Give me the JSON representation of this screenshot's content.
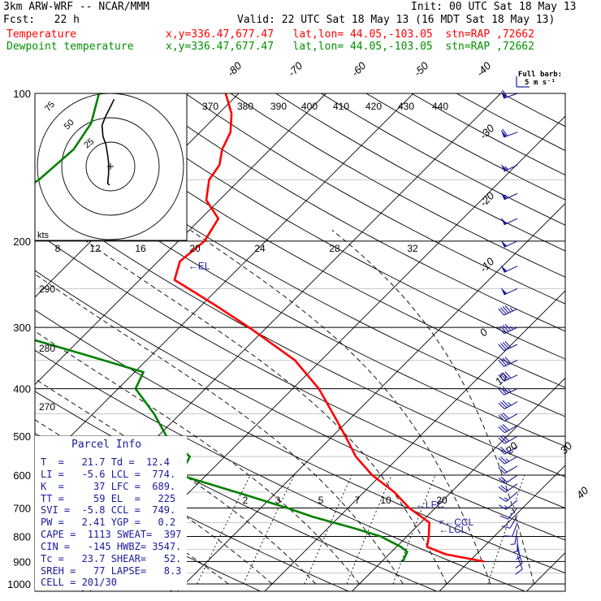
{
  "header": {
    "model": "3km ARW-WRF -- NCAR/MMM",
    "init": "Init: 00 UTC Sat 18 May 13",
    "fcst": "Fcst:   22 h",
    "valid": "Valid: 22 UTC Sat 18 May 13 (16 MDT Sat 18 May 13)",
    "temp_label": "Temperature",
    "temp_loc": "x,y=336.47,677.47   lat,lon= 44.05,-103.05  stn=RAP ,72662",
    "dew_label": "Dewpoint temperature",
    "dew_loc": "x,y=336.47,677.47   lat,lon= 44.05,-103.05  stn=RAP ,72662"
  },
  "colors": {
    "temperature": "#ff0000",
    "dewpoint": "#008000",
    "annotation": "#1a1a9e",
    "grid": "#000000",
    "faint_grid": "#c8c8c8"
  },
  "chart_data": {
    "type": "skew-t",
    "pressure_levels": [
      100,
      200,
      300,
      400,
      500,
      600,
      700,
      800,
      900,
      1000
    ],
    "isotherm_labels": [
      "-80",
      "-70",
      "-60",
      "-50",
      "-40",
      "-30",
      "-20",
      "-10",
      "0",
      "10",
      "20",
      "30",
      "40"
    ],
    "theta_labels": [
      "370",
      "380",
      "390",
      "400",
      "410",
      "420",
      "430",
      "440",
      "290",
      "280",
      "270"
    ],
    "mixing_ratio_labels": [
      "2",
      "3",
      "5",
      "7",
      "10",
      "20"
    ],
    "hodograph": {
      "units_label": "kts",
      "ring_labels": [
        "25",
        "50",
        "75"
      ],
      "speed_axis_labels": [
        "8",
        "12",
        "16",
        "20",
        "24",
        "28",
        "32"
      ],
      "trace": [
        [
          4,
          36
        ],
        [
          -2,
          30
        ],
        [
          -6,
          26
        ],
        [
          -9,
          22
        ],
        [
          -8,
          16
        ],
        [
          -5,
          12
        ],
        [
          -3,
          6
        ],
        [
          -2,
          2
        ],
        [
          -2,
          -4
        ],
        [
          -3,
          -9
        ],
        [
          -1,
          -10
        ]
      ]
    },
    "temperature": [
      {
        "p": 900,
        "t": 21.7
      },
      {
        "p": 870,
        "t": 16.5
      },
      {
        "p": 840,
        "t": 13.5
      },
      {
        "p": 800,
        "t": 12.5
      },
      {
        "p": 750,
        "t": 11.0
      },
      {
        "p": 700,
        "t": 7.0
      },
      {
        "p": 650,
        "t": 3.5
      },
      {
        "p": 600,
        "t": -1.0
      },
      {
        "p": 550,
        "t": -5.0
      },
      {
        "p": 500,
        "t": -8.5
      },
      {
        "p": 450,
        "t": -12.5
      },
      {
        "p": 400,
        "t": -17.0
      },
      {
        "p": 350,
        "t": -23.0
      },
      {
        "p": 300,
        "t": -32.0
      },
      {
        "p": 270,
        "t": -38.5
      },
      {
        "p": 240,
        "t": -46.0
      },
      {
        "p": 220,
        "t": -47.5
      },
      {
        "p": 200,
        "t": -47.0
      },
      {
        "p": 180,
        "t": -48.0
      },
      {
        "p": 165,
        "t": -51.5
      },
      {
        "p": 150,
        "t": -53.5
      },
      {
        "p": 140,
        "t": -54.0
      },
      {
        "p": 130,
        "t": -55.5
      },
      {
        "p": 120,
        "t": -56.5
      },
      {
        "p": 110,
        "t": -58.5
      },
      {
        "p": 100,
        "t": -61.5
      }
    ],
    "dewpoint": [
      {
        "p": 900,
        "t": 12.4
      },
      {
        "p": 860,
        "t": 11.8
      },
      {
        "p": 840,
        "t": 10.5
      },
      {
        "p": 800,
        "t": 7.0
      },
      {
        "p": 770,
        "t": 3.0
      },
      {
        "p": 730,
        "t": -3.0
      },
      {
        "p": 700,
        "t": -7.0
      },
      {
        "p": 660,
        "t": -13.0
      },
      {
        "p": 600,
        "t": -23.0
      },
      {
        "p": 550,
        "t": -24.0
      },
      {
        "p": 500,
        "t": -29.0
      },
      {
        "p": 450,
        "t": -33.0
      },
      {
        "p": 400,
        "t": -38.0
      },
      {
        "p": 370,
        "t": -39.0
      },
      {
        "p": 340,
        "t": -48.0
      },
      {
        "p": 310,
        "t": -58.0
      },
      {
        "p": 290,
        "t": -60.0
      },
      {
        "p": 260,
        "t": -61.0
      },
      {
        "p": 240,
        "t": -63.0
      },
      {
        "p": 220,
        "t": -68.0
      },
      {
        "p": 200,
        "t": -74.0
      },
      {
        "p": 190,
        "t": -76.5
      },
      {
        "p": 180,
        "t": -76.0
      },
      {
        "p": 170,
        "t": -75.0
      },
      {
        "p": 150,
        "t": -73.0
      },
      {
        "p": 130,
        "t": -72.5
      },
      {
        "p": 115,
        "t": -73.5
      },
      {
        "p": 100,
        "t": -76.0
      }
    ],
    "level_annotations": [
      {
        "label": "←EL",
        "p": 225
      },
      {
        "label": "←LFC",
        "p": 689
      },
      {
        "label": "×←CCL",
        "p": 749
      },
      {
        "label": "←LCL",
        "p": 774
      }
    ],
    "wind_barb_legend": {
      "title": "Full barb:",
      "value": "5 m s⁻¹"
    },
    "wind_profile": [
      {
        "p": 100,
        "speed": 30,
        "dir": 250
      },
      {
        "p": 120,
        "speed": 30,
        "dir": 250
      },
      {
        "p": 140,
        "speed": 28,
        "dir": 245
      },
      {
        "p": 160,
        "speed": 28,
        "dir": 245
      },
      {
        "p": 180,
        "speed": 27,
        "dir": 245
      },
      {
        "p": 200,
        "speed": 27,
        "dir": 245
      },
      {
        "p": 225,
        "speed": 26,
        "dir": 245
      },
      {
        "p": 250,
        "speed": 25,
        "dir": 245
      },
      {
        "p": 275,
        "speed": 24,
        "dir": 245
      },
      {
        "p": 300,
        "speed": 23,
        "dir": 245
      },
      {
        "p": 325,
        "speed": 22,
        "dir": 245
      },
      {
        "p": 350,
        "speed": 21,
        "dir": 245
      },
      {
        "p": 375,
        "speed": 20,
        "dir": 245
      },
      {
        "p": 400,
        "speed": 19,
        "dir": 245
      },
      {
        "p": 425,
        "speed": 18,
        "dir": 240
      },
      {
        "p": 450,
        "speed": 17,
        "dir": 240
      },
      {
        "p": 475,
        "speed": 16,
        "dir": 240
      },
      {
        "p": 500,
        "speed": 15,
        "dir": 240
      },
      {
        "p": 525,
        "speed": 14,
        "dir": 240
      },
      {
        "p": 550,
        "speed": 13,
        "dir": 240
      },
      {
        "p": 575,
        "speed": 12,
        "dir": 240
      },
      {
        "p": 600,
        "speed": 11,
        "dir": 235
      },
      {
        "p": 625,
        "speed": 10,
        "dir": 235
      },
      {
        "p": 650,
        "speed": 9,
        "dir": 230
      },
      {
        "p": 675,
        "speed": 8,
        "dir": 230
      },
      {
        "p": 700,
        "speed": 7,
        "dir": 220
      },
      {
        "p": 725,
        "speed": 6,
        "dir": 210
      },
      {
        "p": 750,
        "speed": 5,
        "dir": 200
      },
      {
        "p": 775,
        "speed": 4,
        "dir": 190
      },
      {
        "p": 800,
        "speed": 4,
        "dir": 180
      },
      {
        "p": 825,
        "speed": 4,
        "dir": 170
      },
      {
        "p": 850,
        "speed": 5,
        "dir": 160
      },
      {
        "p": 875,
        "speed": 5,
        "dir": 160
      }
    ]
  },
  "parcel_info": {
    "title": "Parcel Info",
    "rows": [
      "T  =   21.7 Td =  12.4",
      "LI =   -5.6 LCL =  774.",
      "K  =     37 LFC =  689.",
      "TT =     59 EL  =   225",
      "SVI =  -5.8 CCL =  749.",
      "PW =   2.41 YGP =   0.2",
      "CAPE =  1113 SWEAT=  397",
      "CIN =   -145 HWBZ= 3547.",
      "Tc =   23.7 SHEAR=   52.",
      "SREH =   77 LAPSE=   8.3",
      "CELL = 201/30"
    ]
  }
}
